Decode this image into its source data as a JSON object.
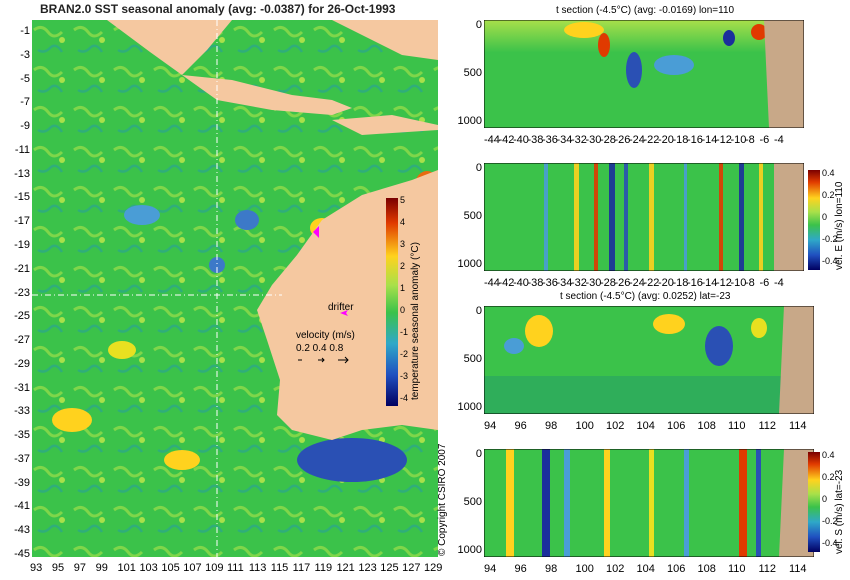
{
  "map": {
    "title": "BRAN2.0 SST seasonal anomaly  (avg: -0.0387)  for 26-Oct-1993",
    "lat_ticks": [
      "-1",
      "-3",
      "-5",
      "-7",
      "-9",
      "-11",
      "-13",
      "-15",
      "-17",
      "-19",
      "-21",
      "-23",
      "-25",
      "-27",
      "-29",
      "-31",
      "-33",
      "-35",
      "-37",
      "-39",
      "-41",
      "-43",
      "-45"
    ],
    "lon_ticks": [
      "93",
      "95",
      "97",
      "99",
      "101",
      "103",
      "105",
      "107",
      "109",
      "111",
      "113",
      "115",
      "117",
      "119",
      "121",
      "123",
      "125",
      "127",
      "129"
    ],
    "colorbar_label": "temperature seasonal anomaly (°C)",
    "colorbar_ticks": [
      "5",
      "4",
      "3",
      "2",
      "1",
      "0",
      "-1",
      "-2",
      "-3",
      "-4"
    ],
    "drifter_label": "drifter",
    "velocity_label": "velocity (m/s)",
    "velocity_scale": "0.2 0.4 0.8",
    "copyright": "© Copyright CSIRO 2007",
    "colors": {
      "ocean": "#3bc24a",
      "land": "#f5c8a0",
      "warm": "#ffd21e",
      "cool": "#4a9dd6",
      "drifter": "#ff00ff"
    }
  },
  "panels": {
    "p1": {
      "title": "t section (-4.5°C) (avg: -0.0169) lon=110",
      "yticks": [
        "0",
        "500",
        "1000"
      ],
      "xticks": [
        "-44",
        "-42",
        "-40",
        "-38",
        "-36",
        "-34",
        "-32",
        "-30",
        "-28",
        "-26",
        "-24",
        "-22",
        "-20",
        "-18",
        "-16",
        "-14",
        "-12",
        "-10",
        "-8",
        "-6",
        "-4"
      ]
    },
    "p2": {
      "yticks": [
        "0",
        "500",
        "1000"
      ],
      "xticks": [
        "-44",
        "-42",
        "-40",
        "-38",
        "-36",
        "-34",
        "-32",
        "-30",
        "-28",
        "-26",
        "-24",
        "-22",
        "-20",
        "-18",
        "-16",
        "-14",
        "-12",
        "-10",
        "-8",
        "-6",
        "-4"
      ],
      "cb_label": "vel. E (m/s) lon=110",
      "cb_ticks": [
        "0.4",
        "0.2",
        "0",
        "-0.2",
        "-0.4"
      ]
    },
    "p3": {
      "title": "t section (-4.5°C) (avg: 0.0252) lat=-23",
      "yticks": [
        "0",
        "500",
        "1000"
      ],
      "xticks": [
        "94",
        "96",
        "98",
        "100",
        "102",
        "104",
        "106",
        "108",
        "110",
        "112",
        "114"
      ]
    },
    "p4": {
      "yticks": [
        "0",
        "500",
        "1000"
      ],
      "xticks": [
        "94",
        "96",
        "98",
        "100",
        "102",
        "104",
        "106",
        "108",
        "110",
        "112",
        "114"
      ],
      "cb_label": "vel. S (m/s) lat=-23",
      "cb_ticks": [
        "0.4",
        "0.2",
        "0",
        "-0.2",
        "-0.4"
      ]
    }
  },
  "chart_data": [
    {
      "type": "heatmap",
      "title": "BRAN2.0 SST seasonal anomaly  (avg: -0.0387)  for 26-Oct-1993",
      "x_range": [
        93,
        129
      ],
      "y_range": [
        -45,
        -1
      ],
      "color_range": [
        -4,
        5
      ],
      "colorbar_label": "temperature seasonal anomaly (°C)"
    },
    {
      "type": "heatmap",
      "title": "t section (-4.5°C) (avg: -0.0169) lon=110",
      "x_range": [
        -44,
        -4
      ],
      "y_range": [
        0,
        1000
      ]
    },
    {
      "type": "heatmap",
      "title": "",
      "x_range": [
        -44,
        -4
      ],
      "y_range": [
        0,
        1000
      ],
      "colorbar_label": "vel. E (m/s) lon=110",
      "color_range": [
        -0.4,
        0.4
      ]
    },
    {
      "type": "heatmap",
      "title": "t section (-4.5°C) (avg: 0.0252) lat=-23",
      "x_range": [
        94,
        114
      ],
      "y_range": [
        0,
        1000
      ]
    },
    {
      "type": "heatmap",
      "title": "",
      "x_range": [
        94,
        114
      ],
      "y_range": [
        0,
        1000
      ],
      "colorbar_label": "vel. S (m/s) lat=-23",
      "color_range": [
        -0.4,
        0.4
      ]
    }
  ]
}
